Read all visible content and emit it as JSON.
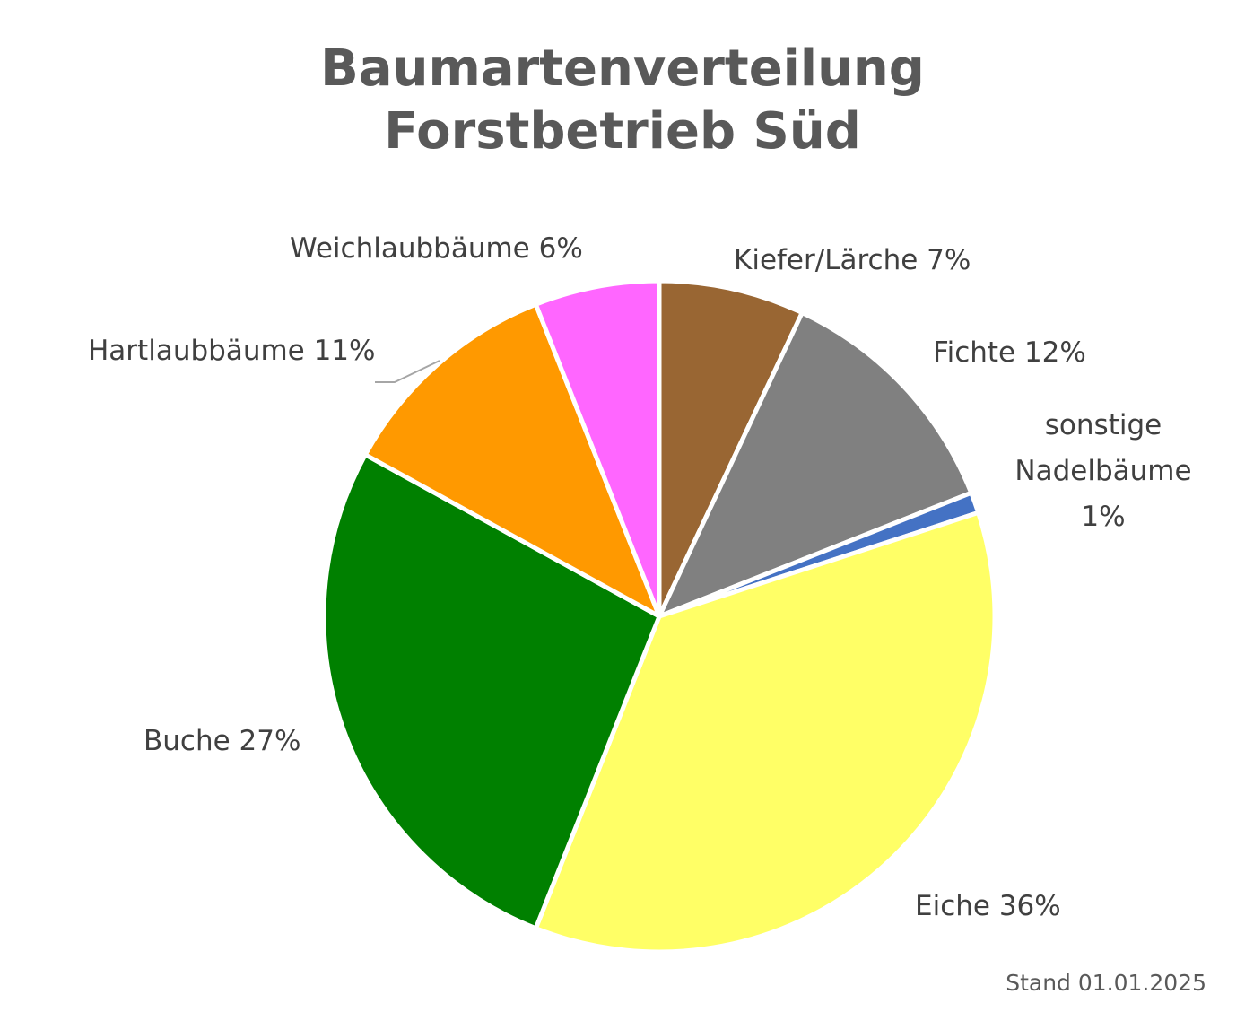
{
  "chart_data": {
    "type": "pie",
    "title": "Baumartenverteilung",
    "subtitle": "Forstbetrieb Süd",
    "slices": [
      {
        "label": "Kiefer/Lärche",
        "value": 7,
        "display": "Kiefer/Lärche 7%",
        "color": "#996633"
      },
      {
        "label": "Fichte",
        "value": 12,
        "display": "Fichte 12%",
        "color": "#808080"
      },
      {
        "label": "sonstige Nadelbäume",
        "value": 1,
        "display_lines": [
          "sonstige",
          "Nadelbäume",
          "1%"
        ],
        "color": "#4472C4"
      },
      {
        "label": "Eiche",
        "value": 36,
        "display": "Eiche 36%",
        "color": "#FFFF66"
      },
      {
        "label": "Buche",
        "value": 27,
        "display": "Buche 27%",
        "color": "#008000"
      },
      {
        "label": "Hartlaubbäume",
        "value": 11,
        "display": "Hartlaubbäume 11%",
        "color": "#FF9900"
      },
      {
        "label": "Weichlaubbäume",
        "value": 6,
        "display": "Weichlaubbäume 6%",
        "color": "#FF66FF"
      }
    ],
    "unit": "%",
    "legend": "none"
  },
  "footnote": "Stand 01.01.2025"
}
